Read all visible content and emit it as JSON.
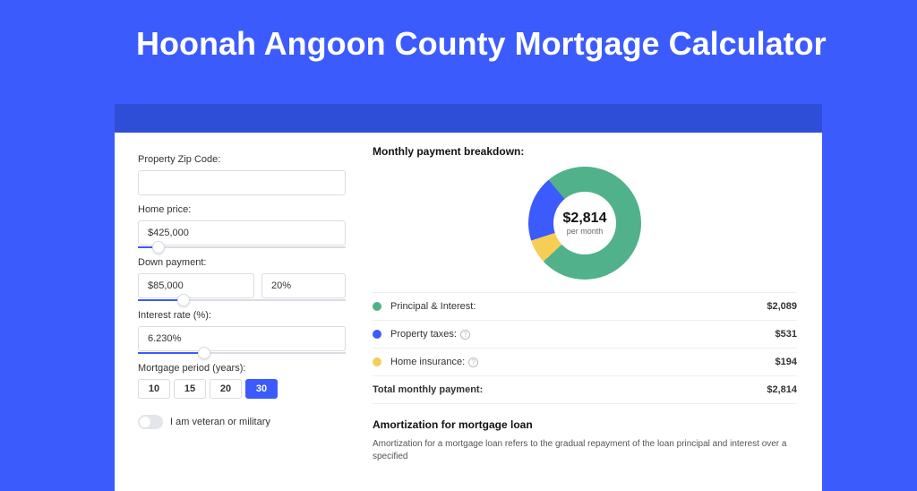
{
  "title": "Hoonah Angoon County Mortgage Calculator",
  "colors": {
    "page_bg": "#3b5bfd",
    "stripe": "#2e4ed8",
    "panel_bg": "#ffffff",
    "accent": "#3b5bfd",
    "border": "#d9dce3"
  },
  "form": {
    "zip": {
      "label": "Property Zip Code:",
      "value": ""
    },
    "home_price": {
      "label": "Home price:",
      "value": "$425,000",
      "slider_pct": 10
    },
    "down_payment": {
      "label": "Down payment:",
      "amount": "$85,000",
      "percent": "20%",
      "slider_pct": 22
    },
    "interest_rate": {
      "label": "Interest rate (%):",
      "value": "6.230%",
      "slider_pct": 32
    },
    "mortgage_period": {
      "label": "Mortgage period (years):",
      "options": [
        "10",
        "15",
        "20",
        "30"
      ],
      "selected": "30"
    },
    "veteran": {
      "label": "I am veteran or military",
      "on": false
    }
  },
  "breakdown": {
    "title": "Monthly payment breakdown:",
    "center_amount": "$2,814",
    "center_sub": "per month",
    "donut": {
      "slices": [
        {
          "name": "principal_interest",
          "color": "#51b18b",
          "percent": 74.2
        },
        {
          "name": "home_insurance",
          "color": "#f6ce55",
          "percent": 6.9
        },
        {
          "name": "property_taxes",
          "color": "#3b5bfd",
          "percent": 18.9
        }
      ]
    },
    "rows": [
      {
        "label": "Principal & Interest:",
        "color": "#51b18b",
        "value": "$2,089",
        "info": false
      },
      {
        "label": "Property taxes:",
        "color": "#3b5bfd",
        "value": "$531",
        "info": true
      },
      {
        "label": "Home insurance:",
        "color": "#f6ce55",
        "value": "$194",
        "info": true
      }
    ],
    "total": {
      "label": "Total monthly payment:",
      "value": "$2,814"
    }
  },
  "amortization": {
    "title": "Amortization for mortgage loan",
    "text": "Amortization for a mortgage loan refers to the gradual repayment of the loan principal and interest over a specified"
  }
}
